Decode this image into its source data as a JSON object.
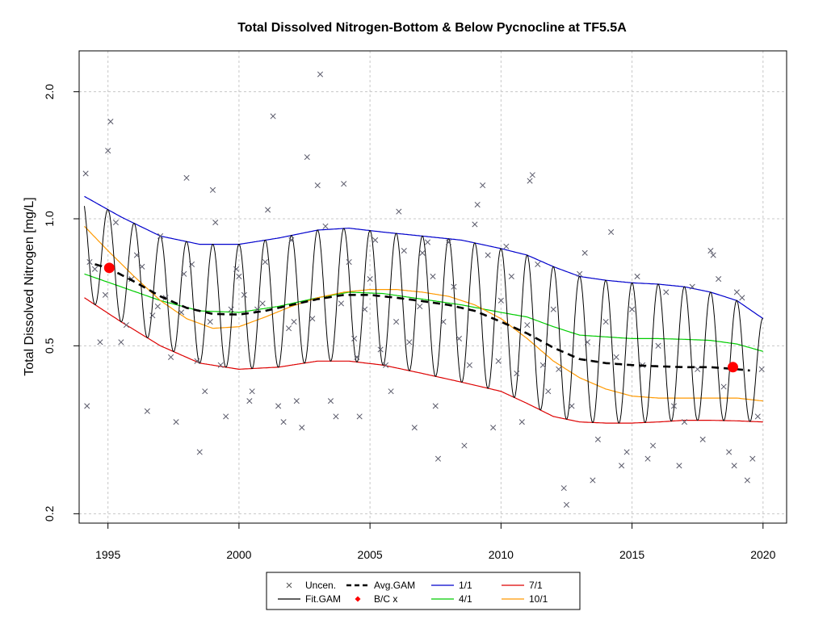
{
  "chart_data": {
    "type": "scatter",
    "title": "Total Dissolved Nitrogen-Bottom & Below Pycnocline at TF5.5A",
    "xlabel": "",
    "ylabel": "Total Dissolved Nitrogen [mg/L]",
    "xlim": [
      1993.9,
      2020.9
    ],
    "ylim": [
      0.19,
      2.5
    ],
    "y_scale": "log",
    "grid": true,
    "x_ticks": [
      1995,
      2000,
      2005,
      2010,
      2015,
      2020
    ],
    "x_tick_labels": [
      "1995",
      "2000",
      "2005",
      "2010",
      "2015",
      "2020"
    ],
    "y_ticks": [
      0.2,
      0.5,
      1.0,
      2.0
    ],
    "y_tick_labels": [
      "0.2",
      "0.5",
      "1.0",
      "2.0"
    ],
    "legend_position": "bottom",
    "legend": [
      {
        "label": "Uncen.",
        "symbol": "x",
        "color": "#555555"
      },
      {
        "label": "Avg.GAM",
        "symbol": "dashed-line",
        "color": "#000000"
      },
      {
        "label": "1/1",
        "symbol": "line",
        "color": "#0000cc"
      },
      {
        "label": "7/1",
        "symbol": "line",
        "color": "#dd0000"
      },
      {
        "label": "Fit.GAM",
        "symbol": "line",
        "color": "#000000"
      },
      {
        "label": "B/C x",
        "symbol": "diamond",
        "color": "#ff0000"
      },
      {
        "label": "4/1",
        "symbol": "line",
        "color": "#00cc00"
      },
      {
        "label": "10/1",
        "symbol": "line",
        "color": "#ff9900"
      }
    ],
    "series": [
      {
        "name": "1/1",
        "color": "#0000cc",
        "x": [
          1994.1,
          1995.5,
          1997,
          1998.5,
          2000,
          2001.5,
          2003,
          2004.2,
          2005.5,
          2007,
          2008.5,
          2010,
          2011,
          2012,
          2013,
          2014,
          2015,
          2016,
          2017,
          2018,
          2019,
          2020
        ],
        "y": [
          1.13,
          1.01,
          0.91,
          0.87,
          0.87,
          0.9,
          0.94,
          0.95,
          0.93,
          0.91,
          0.89,
          0.85,
          0.82,
          0.77,
          0.73,
          0.715,
          0.705,
          0.7,
          0.69,
          0.67,
          0.64,
          0.58
        ]
      },
      {
        "name": "4/1",
        "color": "#00cc00",
        "x": [
          1994.1,
          1995.5,
          1997,
          1998.5,
          2000,
          2001.5,
          2003,
          2004.2,
          2005.5,
          2007,
          2008.5,
          2010,
          2011,
          2012,
          2013,
          2014,
          2015,
          2016,
          2017,
          2018,
          2019,
          2020
        ],
        "y": [
          0.74,
          0.69,
          0.64,
          0.605,
          0.6,
          0.62,
          0.65,
          0.67,
          0.665,
          0.645,
          0.625,
          0.6,
          0.585,
          0.555,
          0.53,
          0.525,
          0.52,
          0.52,
          0.518,
          0.515,
          0.505,
          0.485
        ]
      },
      {
        "name": "7/1",
        "color": "#dd0000",
        "x": [
          1994.1,
          1995.5,
          1997,
          1998.5,
          2000,
          2001.5,
          2003,
          2004.2,
          2005.5,
          2007,
          2008.5,
          2010,
          2011,
          2012,
          2013,
          2014,
          2015,
          2016,
          2017,
          2018,
          2019,
          2020
        ],
        "y": [
          0.65,
          0.57,
          0.5,
          0.455,
          0.44,
          0.445,
          0.46,
          0.46,
          0.45,
          0.43,
          0.41,
          0.39,
          0.365,
          0.34,
          0.33,
          0.328,
          0.328,
          0.33,
          0.333,
          0.333,
          0.332,
          0.33
        ]
      },
      {
        "name": "10/1",
        "color": "#ff9900",
        "x": [
          1994.1,
          1995,
          1996,
          1997,
          1998,
          1999,
          2000,
          2001,
          2002,
          2003,
          2004,
          2005,
          2006,
          2007,
          2008,
          2009,
          2010,
          2011,
          2012,
          2013,
          2014,
          2015,
          2016,
          2017,
          2018,
          2019,
          2020
        ],
        "y": [
          0.96,
          0.84,
          0.73,
          0.64,
          0.58,
          0.55,
          0.555,
          0.585,
          0.62,
          0.65,
          0.67,
          0.68,
          0.68,
          0.67,
          0.655,
          0.625,
          0.58,
          0.52,
          0.46,
          0.42,
          0.395,
          0.38,
          0.376,
          0.376,
          0.376,
          0.376,
          0.37
        ]
      },
      {
        "name": "Avg.GAM",
        "color": "#000000",
        "x": [
          1994.5,
          1995,
          1996,
          1997,
          1998,
          1999,
          2000,
          2001,
          2002,
          2003,
          2004,
          2005,
          2006,
          2007,
          2008,
          2009,
          2010,
          2011,
          2012,
          2013,
          2014,
          2015,
          2016,
          2017,
          2018,
          2019,
          2019.5
        ],
        "y": [
          0.78,
          0.765,
          0.71,
          0.655,
          0.615,
          0.595,
          0.593,
          0.605,
          0.625,
          0.645,
          0.66,
          0.66,
          0.65,
          0.638,
          0.625,
          0.605,
          0.57,
          0.535,
          0.495,
          0.465,
          0.455,
          0.45,
          0.447,
          0.445,
          0.445,
          0.44,
          0.437
        ]
      }
    ],
    "fit_gam": {
      "name": "Fit.GAM",
      "color": "#000000",
      "period_years": 1,
      "peak_phase": 0.0,
      "note_upper": "1/1",
      "note_lower": "7/1"
    },
    "bc_points": [
      {
        "x": 1995.05,
        "y": 0.765
      },
      {
        "x": 2018.85,
        "y": 0.445
      }
    ],
    "observations": [
      [
        1994.15,
        1.28
      ],
      [
        1994.2,
        0.36
      ],
      [
        1994.3,
        0.79
      ],
      [
        1994.5,
        0.76
      ],
      [
        1994.7,
        0.51
      ],
      [
        1994.9,
        0.66
      ],
      [
        1995.0,
        1.45
      ],
      [
        1995.1,
        1.7
      ],
      [
        1995.3,
        0.98
      ],
      [
        1995.5,
        0.51
      ],
      [
        1995.7,
        0.56
      ],
      [
        1995.9,
        0.72
      ],
      [
        1996.1,
        0.82
      ],
      [
        1996.3,
        0.77
      ],
      [
        1996.5,
        0.35
      ],
      [
        1996.7,
        0.59
      ],
      [
        1996.9,
        0.62
      ],
      [
        1997.0,
        0.91
      ],
      [
        1997.2,
        0.65
      ],
      [
        1997.4,
        0.47
      ],
      [
        1997.6,
        0.33
      ],
      [
        1997.8,
        0.6
      ],
      [
        1997.9,
        0.74
      ],
      [
        1998.0,
        1.25
      ],
      [
        1998.2,
        0.78
      ],
      [
        1998.4,
        0.46
      ],
      [
        1998.5,
        0.28
      ],
      [
        1998.7,
        0.39
      ],
      [
        1998.9,
        0.57
      ],
      [
        1999.0,
        1.17
      ],
      [
        1999.1,
        0.98
      ],
      [
        1999.3,
        0.45
      ],
      [
        1999.5,
        0.34
      ],
      [
        1999.7,
        0.61
      ],
      [
        1999.9,
        0.76
      ],
      [
        2000.0,
        0.73
      ],
      [
        2000.2,
        0.66
      ],
      [
        2000.4,
        0.37
      ],
      [
        2000.5,
        0.39
      ],
      [
        2000.7,
        0.61
      ],
      [
        2000.9,
        0.63
      ],
      [
        2001.0,
        0.79
      ],
      [
        2001.1,
        1.05
      ],
      [
        2001.3,
        1.75
      ],
      [
        2001.5,
        0.36
      ],
      [
        2001.7,
        0.33
      ],
      [
        2001.9,
        0.55
      ],
      [
        2002.0,
        0.89
      ],
      [
        2002.1,
        0.57
      ],
      [
        2002.2,
        0.37
      ],
      [
        2002.4,
        0.32
      ],
      [
        2002.6,
        1.4
      ],
      [
        2002.8,
        0.58
      ],
      [
        2003.0,
        1.2
      ],
      [
        2003.1,
        2.2
      ],
      [
        2003.3,
        0.96
      ],
      [
        2003.5,
        0.37
      ],
      [
        2003.7,
        0.34
      ],
      [
        2003.9,
        0.63
      ],
      [
        2004.0,
        1.21
      ],
      [
        2004.2,
        0.79
      ],
      [
        2004.4,
        0.52
      ],
      [
        2004.5,
        0.47
      ],
      [
        2004.6,
        0.34
      ],
      [
        2004.8,
        0.61
      ],
      [
        2005.0,
        0.72
      ],
      [
        2005.2,
        0.89
      ],
      [
        2005.4,
        0.49
      ],
      [
        2005.6,
        0.45
      ],
      [
        2005.8,
        0.39
      ],
      [
        2006.0,
        0.57
      ],
      [
        2006.1,
        1.04
      ],
      [
        2006.3,
        0.84
      ],
      [
        2006.5,
        0.51
      ],
      [
        2006.7,
        0.32
      ],
      [
        2006.9,
        0.62
      ],
      [
        2007.0,
        0.83
      ],
      [
        2007.2,
        0.88
      ],
      [
        2007.4,
        0.73
      ],
      [
        2007.5,
        0.36
      ],
      [
        2007.6,
        0.27
      ],
      [
        2007.8,
        0.57
      ],
      [
        2008.0,
        0.88
      ],
      [
        2008.2,
        0.69
      ],
      [
        2008.4,
        0.52
      ],
      [
        2008.6,
        0.29
      ],
      [
        2008.8,
        0.45
      ],
      [
        2009.0,
        0.97
      ],
      [
        2009.1,
        1.08
      ],
      [
        2009.3,
        1.2
      ],
      [
        2009.5,
        0.82
      ],
      [
        2009.7,
        0.32
      ],
      [
        2009.9,
        0.46
      ],
      [
        2010.0,
        0.64
      ],
      [
        2010.2,
        0.86
      ],
      [
        2010.4,
        0.73
      ],
      [
        2010.6,
        0.43
      ],
      [
        2010.8,
        0.33
      ],
      [
        2011.0,
        0.56
      ],
      [
        2011.1,
        1.23
      ],
      [
        2011.2,
        1.27
      ],
      [
        2011.4,
        0.78
      ],
      [
        2011.6,
        0.45
      ],
      [
        2011.8,
        0.39
      ],
      [
        2012.0,
        0.61
      ],
      [
        2012.2,
        0.44
      ],
      [
        2012.4,
        0.23
      ],
      [
        2012.5,
        0.21
      ],
      [
        2012.7,
        0.36
      ],
      [
        2013.0,
        0.74
      ],
      [
        2013.2,
        0.83
      ],
      [
        2013.3,
        0.51
      ],
      [
        2013.5,
        0.24
      ],
      [
        2013.7,
        0.3
      ],
      [
        2014.0,
        0.57
      ],
      [
        2014.2,
        0.93
      ],
      [
        2014.4,
        0.47
      ],
      [
        2014.6,
        0.26
      ],
      [
        2014.8,
        0.28
      ],
      [
        2015.0,
        0.61
      ],
      [
        2015.2,
        0.73
      ],
      [
        2015.4,
        0.45
      ],
      [
        2015.6,
        0.27
      ],
      [
        2015.8,
        0.29
      ],
      [
        2016.0,
        0.5
      ],
      [
        2016.3,
        0.67
      ],
      [
        2016.6,
        0.36
      ],
      [
        2016.8,
        0.26
      ],
      [
        2017.0,
        0.33
      ],
      [
        2017.3,
        0.69
      ],
      [
        2017.5,
        0.44
      ],
      [
        2017.7,
        0.3
      ],
      [
        2018.0,
        0.84
      ],
      [
        2018.1,
        0.82
      ],
      [
        2018.3,
        0.72
      ],
      [
        2018.5,
        0.4
      ],
      [
        2018.7,
        0.28
      ],
      [
        2018.9,
        0.26
      ],
      [
        2019.0,
        0.67
      ],
      [
        2019.2,
        0.65
      ],
      [
        2019.4,
        0.24
      ],
      [
        2019.6,
        0.27
      ],
      [
        2019.8,
        0.34
      ],
      [
        2019.95,
        0.44
      ]
    ]
  }
}
